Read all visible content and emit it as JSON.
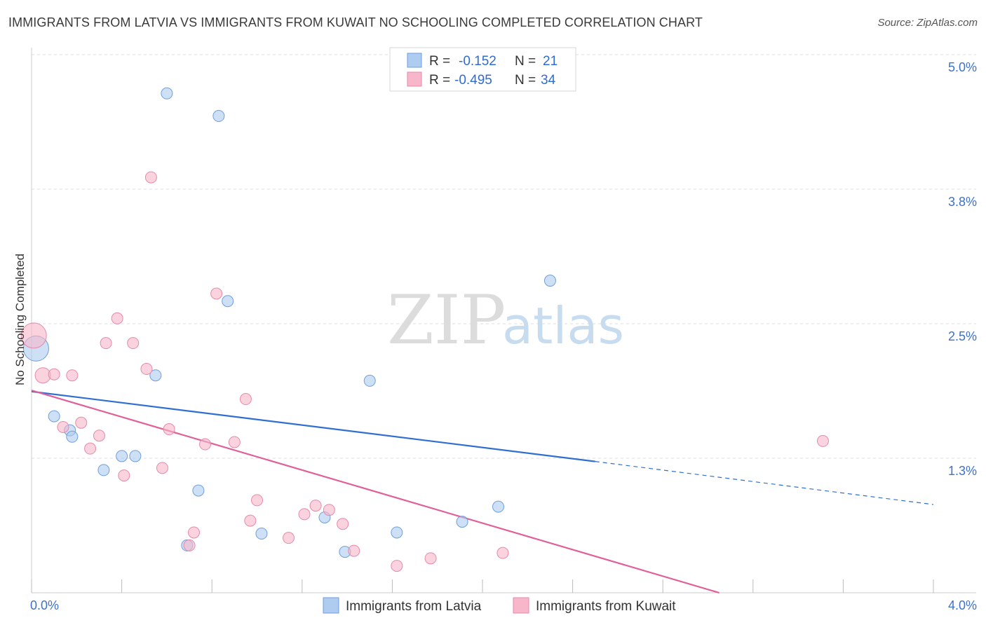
{
  "header": {
    "title": "IMMIGRANTS FROM LATVIA VS IMMIGRANTS FROM KUWAIT NO SCHOOLING COMPLETED CORRELATION CHART",
    "source": "Source: ZipAtlas.com"
  },
  "watermark": {
    "zip": "ZIP",
    "atlas": "atlas"
  },
  "legend": {
    "rows": [
      {
        "r_label": "R =",
        "r_value": "-0.152",
        "n_label": "N =",
        "n_value": "21",
        "color": "#aecbf0"
      },
      {
        "r_label": "R =",
        "r_value": "-0.495",
        "n_label": "N =",
        "n_value": "34",
        "color": "#f7b6c9"
      }
    ]
  },
  "chart_data": {
    "type": "scatter",
    "title": "IMMIGRANTS FROM LATVIA VS IMMIGRANTS FROM KUWAIT NO SCHOOLING COMPLETED CORRELATION CHART",
    "xlabel": "",
    "ylabel": "No Schooling Completed",
    "xlim": [
      0,
      4.0
    ],
    "ylim": [
      0,
      5.0
    ],
    "x_tick_labels": [
      "0.0%",
      "4.0%"
    ],
    "y_tick_labels": [
      "1.3%",
      "2.5%",
      "3.8%",
      "5.0%"
    ],
    "y_tick_values": [
      1.25,
      2.5,
      3.75,
      5.0
    ],
    "grid": true,
    "series": [
      {
        "name": "Immigrants from Latvia",
        "color": "#aecbf0",
        "stroke": "#6f9fdc",
        "line_color": "#2f6fd0",
        "points": [
          {
            "x": 0.02,
            "y": 2.27,
            "big": true
          },
          {
            "x": 0.6,
            "y": 4.64
          },
          {
            "x": 0.83,
            "y": 4.43
          },
          {
            "x": 0.87,
            "y": 2.71
          },
          {
            "x": 2.3,
            "y": 2.9
          },
          {
            "x": 1.5,
            "y": 1.97
          },
          {
            "x": 0.55,
            "y": 2.02
          },
          {
            "x": 0.1,
            "y": 1.64
          },
          {
            "x": 0.17,
            "y": 1.51
          },
          {
            "x": 0.18,
            "y": 1.45
          },
          {
            "x": 0.4,
            "y": 1.27
          },
          {
            "x": 0.46,
            "y": 1.27
          },
          {
            "x": 0.32,
            "y": 1.14
          },
          {
            "x": 0.74,
            "y": 0.95
          },
          {
            "x": 2.07,
            "y": 0.8
          },
          {
            "x": 1.3,
            "y": 0.7
          },
          {
            "x": 1.91,
            "y": 0.66
          },
          {
            "x": 1.02,
            "y": 0.55
          },
          {
            "x": 1.62,
            "y": 0.56
          },
          {
            "x": 0.69,
            "y": 0.44
          },
          {
            "x": 1.39,
            "y": 0.38
          }
        ],
        "trend": {
          "x1": 0.0,
          "y1": 1.87,
          "x2": 2.5,
          "y2": 1.22,
          "dash_x2": 4.0,
          "dash_y2": 0.82
        }
      },
      {
        "name": "Immigrants from Kuwait",
        "color": "#f7b6c9",
        "stroke": "#e68aa8",
        "line_color": "#e0609a",
        "points": [
          {
            "x": 0.01,
            "y": 2.39,
            "big": true
          },
          {
            "x": 0.53,
            "y": 3.86
          },
          {
            "x": 0.82,
            "y": 2.78
          },
          {
            "x": 0.38,
            "y": 2.55
          },
          {
            "x": 0.33,
            "y": 2.32
          },
          {
            "x": 0.45,
            "y": 2.32
          },
          {
            "x": 0.05,
            "y": 2.02,
            "mid": true
          },
          {
            "x": 0.1,
            "y": 2.03
          },
          {
            "x": 0.18,
            "y": 2.02
          },
          {
            "x": 0.51,
            "y": 2.08
          },
          {
            "x": 0.95,
            "y": 1.8
          },
          {
            "x": 0.14,
            "y": 1.54
          },
          {
            "x": 0.22,
            "y": 1.58
          },
          {
            "x": 0.3,
            "y": 1.46
          },
          {
            "x": 0.61,
            "y": 1.52
          },
          {
            "x": 0.77,
            "y": 1.38
          },
          {
            "x": 0.9,
            "y": 1.4
          },
          {
            "x": 0.26,
            "y": 1.34
          },
          {
            "x": 0.58,
            "y": 1.16
          },
          {
            "x": 0.41,
            "y": 1.09
          },
          {
            "x": 3.51,
            "y": 1.41
          },
          {
            "x": 1.0,
            "y": 0.86
          },
          {
            "x": 1.21,
            "y": 0.73
          },
          {
            "x": 1.26,
            "y": 0.81
          },
          {
            "x": 1.32,
            "y": 0.77
          },
          {
            "x": 0.97,
            "y": 0.67
          },
          {
            "x": 1.38,
            "y": 0.64
          },
          {
            "x": 0.72,
            "y": 0.56
          },
          {
            "x": 1.14,
            "y": 0.51
          },
          {
            "x": 0.7,
            "y": 0.44
          },
          {
            "x": 1.43,
            "y": 0.39
          },
          {
            "x": 2.09,
            "y": 0.37
          },
          {
            "x": 1.77,
            "y": 0.32
          },
          {
            "x": 1.62,
            "y": 0.25
          }
        ],
        "trend": {
          "x1": 0.0,
          "y1": 1.88,
          "x2": 3.05,
          "y2": 0.0
        }
      }
    ]
  }
}
